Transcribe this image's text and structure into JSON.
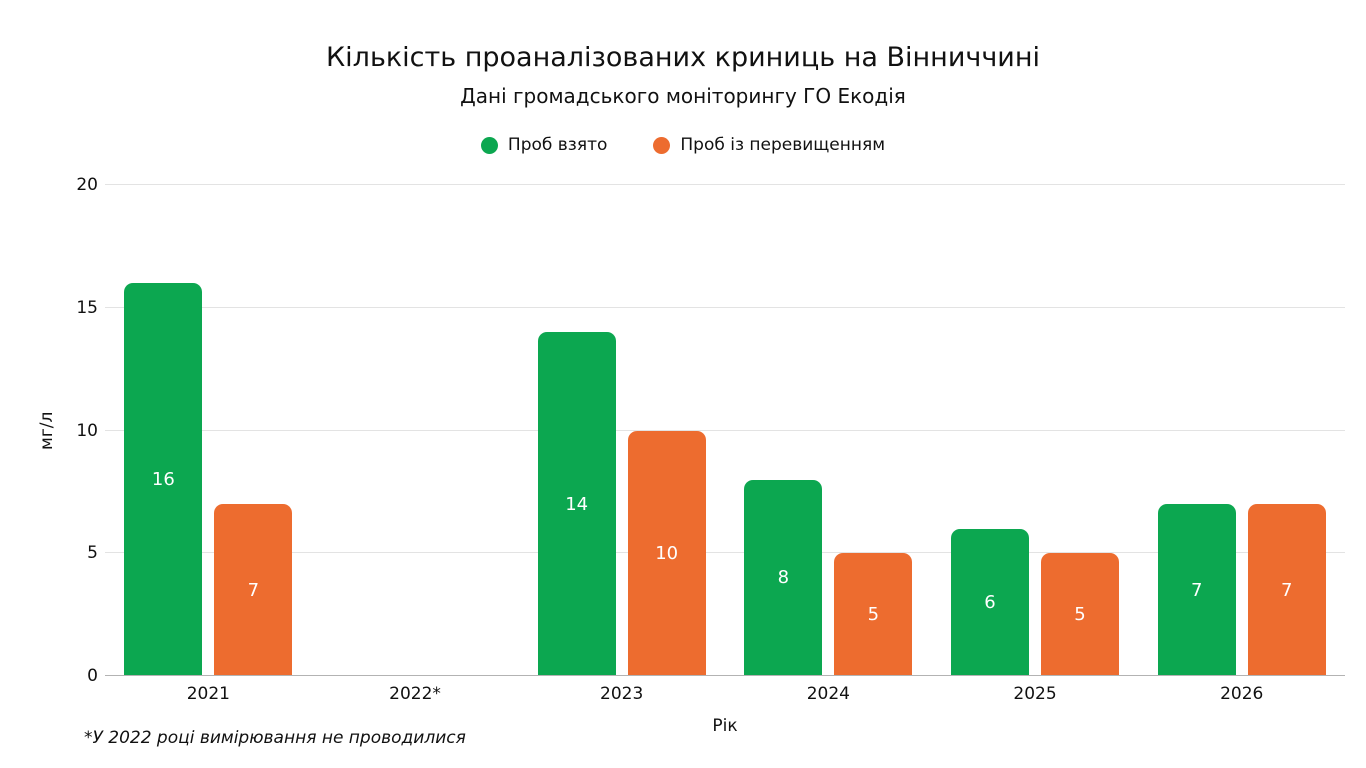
{
  "header": {
    "title": "Кількість проаналізованих криниць на Вінниччині",
    "subtitle": "Дані громадського моніторингу ГО Екодія"
  },
  "legend": [
    {
      "label": "Проб взято",
      "color": "#0CA750"
    },
    {
      "label": "Проб із перевищенням",
      "color": "#ED6C2F"
    }
  ],
  "footnote": "*У 2022 році вимірювання не проводилися",
  "chart_data": {
    "type": "bar",
    "title": "Кількість проаналізованих криниць на Вінниччині",
    "subtitle": "Дані громадського моніторингу ГО Екодія",
    "categories": [
      "2021",
      "2022*",
      "2023",
      "2024",
      "2025",
      "2026"
    ],
    "series": [
      {
        "name": "Проб взято",
        "color": "#0CA750",
        "values": [
          16,
          null,
          14,
          8,
          6,
          7
        ]
      },
      {
        "name": "Проб із перевищенням",
        "color": "#ED6C2F",
        "values": [
          7,
          null,
          10,
          5,
          5,
          7
        ]
      }
    ],
    "xlabel": "Рік",
    "ylabel": "мг/л",
    "ylim": [
      0,
      20
    ],
    "yticks": [
      0,
      5,
      10,
      15,
      20
    ],
    "grid": true,
    "legend_position": "top",
    "annotation": "*У 2022 році вимірювання не проводилися"
  }
}
